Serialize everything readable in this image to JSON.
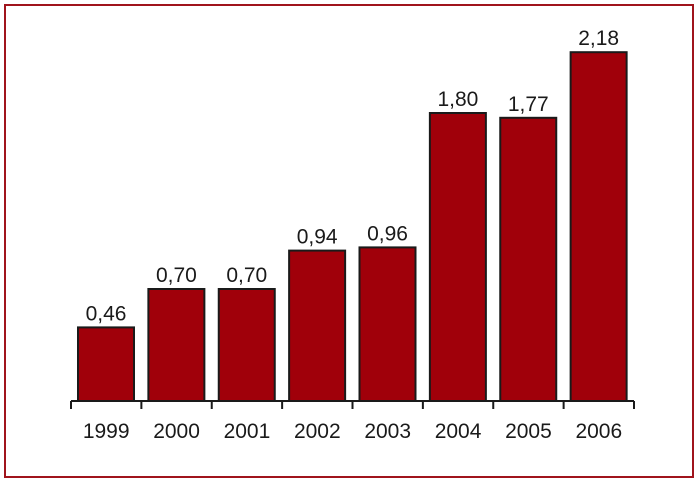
{
  "colors": {
    "bar": "#a0000a",
    "bar_stroke": "#1a1a1a",
    "frame_border": "#a0141c"
  },
  "chart_data": {
    "type": "bar",
    "categories": [
      "1999",
      "2000",
      "2001",
      "2002",
      "2003",
      "2004",
      "2005",
      "2006"
    ],
    "values": [
      0.46,
      0.7,
      0.7,
      0.94,
      0.96,
      1.8,
      1.77,
      2.18
    ],
    "value_labels": [
      "0,46",
      "0,70",
      "0,70",
      "0,94",
      "0,96",
      "1,80",
      "1,77",
      "2,18"
    ],
    "title": "",
    "xlabel": "",
    "ylabel": "",
    "ylim": [
      0,
      2.4
    ],
    "grid": false,
    "legend": "none"
  }
}
